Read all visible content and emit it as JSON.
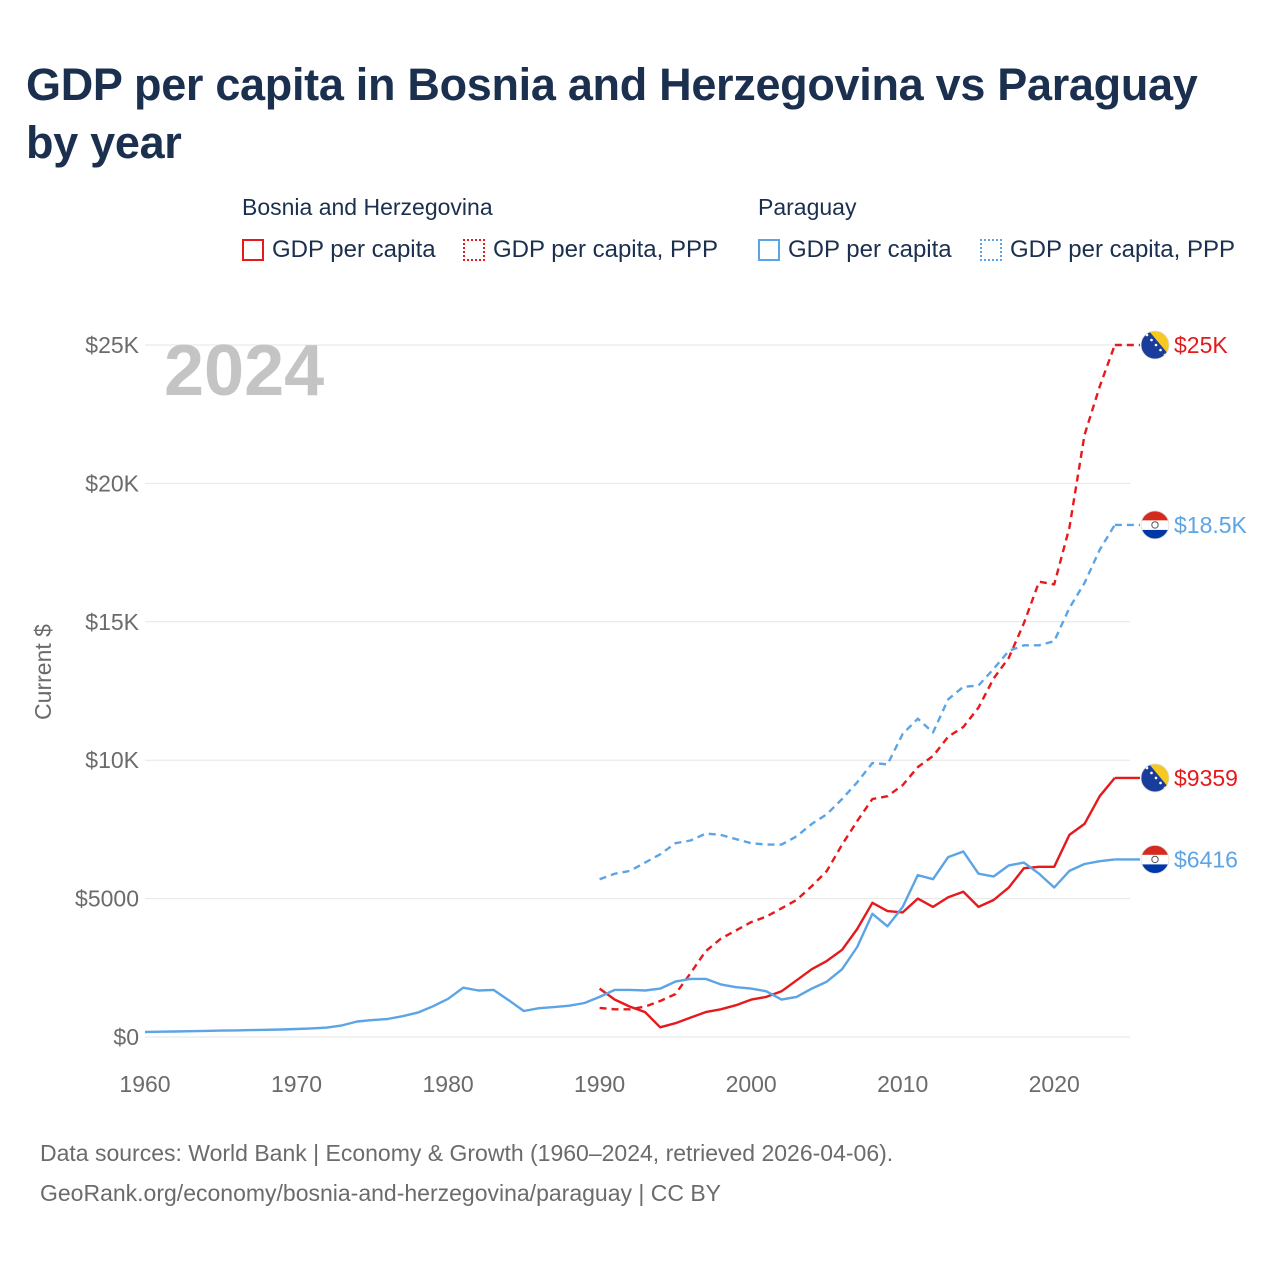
{
  "title": "GDP per capita in Bosnia and Herzegovina vs Paraguay by year",
  "legend": {
    "groups": [
      {
        "name": "Bosnia and Herzegovina",
        "items": [
          {
            "label": "GDP per capita",
            "style": "solid",
            "color": "#e41a1c"
          },
          {
            "label": "GDP per capita, PPP",
            "style": "dotted",
            "color": "#e41a1c"
          }
        ]
      },
      {
        "name": "Paraguay",
        "items": [
          {
            "label": "GDP per capita",
            "style": "solid",
            "color": "#5ba4e5"
          },
          {
            "label": "GDP per capita, PPP",
            "style": "dotted",
            "color": "#5ba4e5"
          }
        ]
      }
    ]
  },
  "year_label": "2024",
  "footer": {
    "line1": "Data sources: World Bank | Economy & Growth (1960–2024, retrieved 2026-04-06).",
    "line2": "GeoRank.org/economy/bosnia-and-herzegovina/paraguay | CC BY"
  },
  "colors": {
    "bosnia": "#e41a1c",
    "paraguay": "#5ba4e5",
    "title": "#1b2f4e",
    "axis_text": "#6b6b6b",
    "grid": "#e6e6e6",
    "year": "#c4c4c4"
  },
  "chart_data": {
    "type": "line",
    "title": "GDP per capita in Bosnia and Herzegovina vs Paraguay by year",
    "xlabel": "",
    "ylabel": "Current $",
    "xlim": [
      1960,
      2025
    ],
    "ylim": [
      0,
      25000
    ],
    "xticks": [
      1960,
      1970,
      1980,
      1990,
      2000,
      2010,
      2020
    ],
    "xtick_labels": [
      "1960",
      "1970",
      "1980",
      "1990",
      "2000",
      "2010",
      "2020"
    ],
    "yticks": [
      0,
      5000,
      10000,
      15000,
      20000,
      25000
    ],
    "ytick_labels": [
      "$0",
      "$5000",
      "$10K",
      "$15K",
      "$20K",
      "$25K"
    ],
    "series": [
      {
        "name": "Bosnia and Herzegovina GDP per capita",
        "country": "Bosnia and Herzegovina",
        "color": "#e41a1c",
        "dash": "solid",
        "end_label": "$9359",
        "flag": "bosnia-flag-icon",
        "x": [
          1990,
          1991,
          1992,
          1993,
          1994,
          1995,
          1996,
          1997,
          1998,
          1999,
          2000,
          2001,
          2002,
          2003,
          2004,
          2005,
          2006,
          2007,
          2008,
          2009,
          2010,
          2011,
          2012,
          2013,
          2014,
          2015,
          2016,
          2017,
          2018,
          2019,
          2020,
          2021,
          2022,
          2023,
          2024
        ],
        "y": [
          1750,
          1350,
          1100,
          900,
          350,
          500,
          700,
          900,
          1000,
          1150,
          1350,
          1450,
          1650,
          2050,
          2450,
          2750,
          3150,
          3900,
          4850,
          4550,
          4500,
          5000,
          4700,
          5050,
          5250,
          4700,
          4950,
          5400,
          6100,
          6150,
          6150,
          7300,
          7700,
          8700,
          9359
        ]
      },
      {
        "name": "Bosnia and Herzegovina GDP per capita, PPP",
        "country": "Bosnia and Herzegovina",
        "color": "#e41a1c",
        "dash": "dashed",
        "end_label": "$25K",
        "flag": "bosnia-flag-icon",
        "x": [
          1990,
          1991,
          1992,
          1993,
          1994,
          1995,
          1996,
          1997,
          1998,
          1999,
          2000,
          2001,
          2002,
          2003,
          2004,
          2005,
          2006,
          2007,
          2008,
          2009,
          2010,
          2011,
          2012,
          2013,
          2014,
          2015,
          2016,
          2017,
          2018,
          2019,
          2020,
          2021,
          2022,
          2023,
          2024
        ],
        "y": [
          1050,
          1000,
          1000,
          1100,
          1300,
          1550,
          2300,
          3100,
          3550,
          3850,
          4150,
          4350,
          4650,
          4950,
          5450,
          6000,
          6950,
          7800,
          8600,
          8700,
          9100,
          9750,
          10150,
          10850,
          11200,
          11900,
          12950,
          13700,
          14950,
          16450,
          16350,
          18400,
          21750,
          23500,
          25000
        ]
      },
      {
        "name": "Paraguay GDP per capita",
        "country": "Paraguay",
        "color": "#5ba4e5",
        "dash": "solid",
        "end_label": "$6416",
        "flag": "paraguay-flag-icon",
        "x": [
          1960,
          1961,
          1962,
          1963,
          1964,
          1965,
          1966,
          1967,
          1968,
          1969,
          1970,
          1971,
          1972,
          1973,
          1974,
          1975,
          1976,
          1977,
          1978,
          1979,
          1980,
          1981,
          1982,
          1983,
          1984,
          1985,
          1986,
          1987,
          1988,
          1989,
          1990,
          1991,
          1992,
          1993,
          1994,
          1995,
          1996,
          1997,
          1998,
          1999,
          2000,
          2001,
          2002,
          2003,
          2004,
          2005,
          2006,
          2007,
          2008,
          2009,
          2010,
          2011,
          2012,
          2013,
          2014,
          2015,
          2016,
          2017,
          2018,
          2019,
          2020,
          2021,
          2022,
          2023,
          2024
        ],
        "y": [
          180,
          190,
          200,
          210,
          220,
          230,
          240,
          250,
          260,
          270,
          290,
          310,
          340,
          420,
          560,
          610,
          650,
          750,
          880,
          1110,
          1380,
          1780,
          1680,
          1700,
          1330,
          940,
          1040,
          1080,
          1130,
          1230,
          1450,
          1700,
          1700,
          1680,
          1750,
          2000,
          2100,
          2100,
          1900,
          1800,
          1750,
          1650,
          1350,
          1450,
          1750,
          2000,
          2450,
          3250,
          4450,
          4000,
          4700,
          5850,
          5700,
          6500,
          6700,
          5900,
          5800,
          6200,
          6300,
          5900,
          5400,
          6000,
          6250,
          6350,
          6416
        ]
      },
      {
        "name": "Paraguay GDP per capita, PPP",
        "country": "Paraguay",
        "color": "#5ba4e5",
        "dash": "dashed",
        "end_label": "$18.5K",
        "flag": "paraguay-flag-icon",
        "x": [
          1990,
          1991,
          1992,
          1993,
          1994,
          1995,
          1996,
          1997,
          1998,
          1999,
          2000,
          2001,
          2002,
          2003,
          2004,
          2005,
          2006,
          2007,
          2008,
          2009,
          2010,
          2011,
          2012,
          2013,
          2014,
          2015,
          2016,
          2017,
          2018,
          2019,
          2020,
          2021,
          2022,
          2023,
          2024
        ],
        "y": [
          5700,
          5900,
          6000,
          6300,
          6600,
          7000,
          7100,
          7350,
          7300,
          7150,
          7000,
          6950,
          6950,
          7250,
          7700,
          8050,
          8600,
          9200,
          9900,
          9850,
          10950,
          11500,
          11000,
          12200,
          12650,
          12700,
          13300,
          13950,
          14150,
          14150,
          14300,
          15500,
          16400,
          17600,
          18500
        ]
      }
    ]
  }
}
